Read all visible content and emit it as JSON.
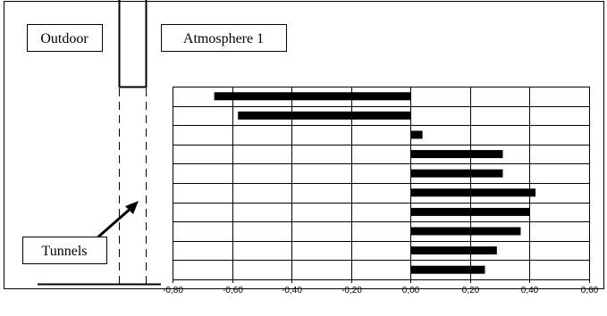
{
  "diagram": {
    "outdoor_label": "Outdoor",
    "atmosphere_label": "Atmosphere 1",
    "tunnels_label": "Tunnels"
  },
  "chart_data": {
    "type": "bar",
    "orientation": "horizontal",
    "title": "",
    "xlabel": "",
    "ylabel": "",
    "xlim": [
      -0.8,
      0.6
    ],
    "x_ticks": [
      "-0,80",
      "-0,60",
      "-0,40",
      "-0,20",
      "0,00",
      "0,20",
      "0,40",
      "0,60"
    ],
    "grid": true,
    "legend": "none",
    "bar_color": "#000000",
    "values": [
      -0.66,
      -0.58,
      0.04,
      0.31,
      0.31,
      0.42,
      0.4,
      0.37,
      0.29,
      0.25
    ]
  }
}
